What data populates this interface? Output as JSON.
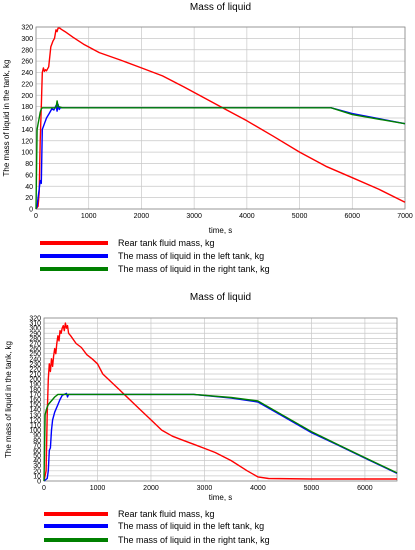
{
  "chart_data": [
    {
      "type": "line",
      "title": "Mass of liquid",
      "xlabel": "time, s",
      "ylabel": "The mass of liquid in the tank, kg",
      "xlim": [
        0,
        7000
      ],
      "ylim": [
        0,
        320
      ],
      "xticks": [
        "0",
        "1000",
        "2000",
        "3000",
        "4000",
        "5000",
        "6000",
        "7000"
      ],
      "yticks": [
        "0",
        "20",
        "40",
        "60",
        "80",
        "100",
        "120",
        "140",
        "160",
        "180",
        "200",
        "220",
        "240",
        "260",
        "280",
        "300",
        "320"
      ],
      "grid": true,
      "legend_position": "bottom",
      "series": [
        {
          "name": "Rear tank fluid mass, kg",
          "color": "#ff0000",
          "points": [
            [
              0,
              0
            ],
            [
              40,
              5
            ],
            [
              60,
              30
            ],
            [
              80,
              120
            ],
            [
              100,
              180
            ],
            [
              120,
              240
            ],
            [
              140,
              248
            ],
            [
              160,
              242
            ],
            [
              180,
              245
            ],
            [
              200,
              243
            ],
            [
              240,
              250
            ],
            [
              280,
              285
            ],
            [
              320,
              295
            ],
            [
              350,
              300
            ],
            [
              380,
              315
            ],
            [
              400,
              312
            ],
            [
              420,
              318
            ],
            [
              450,
              318
            ],
            [
              480,
              316
            ],
            [
              550,
              312
            ],
            [
              700,
              302
            ],
            [
              900,
              290
            ],
            [
              1200,
              275
            ],
            [
              1600,
              262
            ],
            [
              2000,
              248
            ],
            [
              2400,
              234
            ],
            [
              2800,
              215
            ],
            [
              3200,
              195
            ],
            [
              3600,
              175
            ],
            [
              4000,
              155
            ],
            [
              4500,
              128
            ],
            [
              5000,
              100
            ],
            [
              5500,
              75
            ],
            [
              6000,
              55
            ],
            [
              6500,
              35
            ],
            [
              7000,
              12
            ]
          ]
        },
        {
          "name": "The mass of liquid in the left tank, kg",
          "color": "#0000ff",
          "points": [
            [
              0,
              0
            ],
            [
              20,
              5
            ],
            [
              40,
              20
            ],
            [
              60,
              35
            ],
            [
              80,
              50
            ],
            [
              100,
              45
            ],
            [
              120,
              140
            ],
            [
              140,
              145
            ],
            [
              160,
              150
            ],
            [
              200,
              160
            ],
            [
              250,
              168
            ],
            [
              300,
              176
            ],
            [
              340,
              174
            ],
            [
              380,
              182
            ],
            [
              400,
              172
            ],
            [
              420,
              184
            ],
            [
              440,
              175
            ],
            [
              460,
              178
            ],
            [
              500,
              178
            ],
            [
              1000,
              178
            ],
            [
              3000,
              178
            ],
            [
              5600,
              178
            ],
            [
              6000,
              168
            ],
            [
              7000,
              150
            ]
          ]
        },
        {
          "name": "The mass of liquid in the right tank, kg",
          "color": "#008000",
          "points": [
            [
              0,
              0
            ],
            [
              20,
              140
            ],
            [
              40,
              150
            ],
            [
              60,
              160
            ],
            [
              80,
              170
            ],
            [
              100,
              176
            ],
            [
              120,
              178
            ],
            [
              200,
              178
            ],
            [
              380,
              178
            ],
            [
              400,
              190
            ],
            [
              420,
              180
            ],
            [
              500,
              178
            ],
            [
              1000,
              178
            ],
            [
              3000,
              178
            ],
            [
              5600,
              178
            ],
            [
              6000,
              166
            ],
            [
              7000,
              150
            ]
          ]
        }
      ]
    },
    {
      "type": "line",
      "title": "Mass of liquid",
      "xlabel": "time, s",
      "ylabel": "The mass of liquid in the tank, kg",
      "xlim": [
        0,
        6600
      ],
      "ylim": [
        0,
        320
      ],
      "xticks": [
        "0",
        "1000",
        "2000",
        "3000",
        "4000",
        "5000",
        "6000"
      ],
      "yticks": [
        "0",
        "10",
        "20",
        "30",
        "40",
        "50",
        "60",
        "70",
        "80",
        "90",
        "100",
        "110",
        "120",
        "130",
        "140",
        "150",
        "160",
        "170",
        "180",
        "190",
        "200",
        "210",
        "220",
        "230",
        "240",
        "250",
        "260",
        "270",
        "280",
        "290",
        "300",
        "310",
        "320"
      ],
      "grid": true,
      "legend_position": "bottom",
      "series": [
        {
          "name": "Rear tank fluid mass, kg",
          "color": "#ff0000",
          "points": [
            [
              0,
              0
            ],
            [
              40,
              20
            ],
            [
              60,
              130
            ],
            [
              80,
              200
            ],
            [
              100,
              230
            ],
            [
              120,
              215
            ],
            [
              140,
              240
            ],
            [
              160,
              225
            ],
            [
              180,
              245
            ],
            [
              200,
              260
            ],
            [
              220,
              250
            ],
            [
              240,
              270
            ],
            [
              260,
              285
            ],
            [
              280,
              275
            ],
            [
              300,
              295
            ],
            [
              320,
              290
            ],
            [
              340,
              300
            ],
            [
              360,
              305
            ],
            [
              380,
              295
            ],
            [
              400,
              310
            ],
            [
              420,
              300
            ],
            [
              440,
              305
            ],
            [
              460,
              290
            ],
            [
              500,
              285
            ],
            [
              600,
              270
            ],
            [
              700,
              262
            ],
            [
              800,
              248
            ],
            [
              900,
              240
            ],
            [
              1000,
              230
            ],
            [
              1100,
              210
            ],
            [
              1200,
              200
            ],
            [
              1400,
              180
            ],
            [
              1600,
              160
            ],
            [
              1800,
              140
            ],
            [
              2000,
              120
            ],
            [
              2200,
              100
            ],
            [
              2400,
              88
            ],
            [
              2600,
              80
            ],
            [
              2800,
              72
            ],
            [
              3000,
              64
            ],
            [
              3200,
              56
            ],
            [
              3500,
              40
            ],
            [
              3800,
              20
            ],
            [
              4000,
              8
            ],
            [
              4200,
              5
            ],
            [
              5000,
              4
            ],
            [
              6600,
              4
            ]
          ]
        },
        {
          "name": "The mass of liquid in the left tank, kg",
          "color": "#0000ff",
          "points": [
            [
              0,
              0
            ],
            [
              60,
              5
            ],
            [
              80,
              20
            ],
            [
              100,
              60
            ],
            [
              120,
              65
            ],
            [
              140,
              100
            ],
            [
              160,
              120
            ],
            [
              200,
              135
            ],
            [
              260,
              150
            ],
            [
              300,
              160
            ],
            [
              340,
              168
            ],
            [
              380,
              170
            ],
            [
              420,
              172
            ],
            [
              440,
              165
            ],
            [
              460,
              170
            ],
            [
              500,
              170
            ],
            [
              1000,
              170
            ],
            [
              2000,
              170
            ],
            [
              2800,
              170
            ],
            [
              3500,
              163
            ],
            [
              4000,
              155
            ],
            [
              4500,
              125
            ],
            [
              5000,
              95
            ],
            [
              5500,
              70
            ],
            [
              6000,
              45
            ],
            [
              6600,
              15
            ]
          ]
        },
        {
          "name": "The mass of liquid in the right tank, kg",
          "color": "#008000",
          "points": [
            [
              0,
              0
            ],
            [
              20,
              130
            ],
            [
              40,
              138
            ],
            [
              60,
              145
            ],
            [
              80,
              150
            ],
            [
              120,
              155
            ],
            [
              160,
              160
            ],
            [
              200,
              165
            ],
            [
              260,
              170
            ],
            [
              300,
              170
            ],
            [
              1000,
              170
            ],
            [
              2000,
              170
            ],
            [
              2800,
              170
            ],
            [
              3500,
              164
            ],
            [
              4000,
              157
            ],
            [
              4500,
              127
            ],
            [
              5000,
              97
            ],
            [
              5500,
              71
            ],
            [
              6000,
              46
            ],
            [
              6600,
              16
            ]
          ]
        }
      ]
    }
  ]
}
